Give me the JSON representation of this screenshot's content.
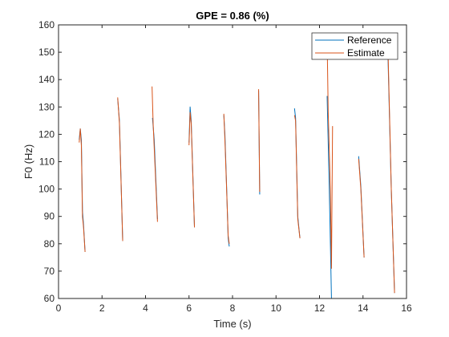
{
  "chart_data": {
    "type": "line",
    "title": "GPE = 0.86 (%)",
    "xlabel": "Time (s)",
    "ylabel": "F0 (Hz)",
    "xlim": [
      0,
      16
    ],
    "ylim": [
      60,
      160
    ],
    "xticks": [
      0,
      2,
      4,
      6,
      8,
      10,
      12,
      14,
      16
    ],
    "yticks": [
      60,
      70,
      80,
      90,
      100,
      110,
      120,
      130,
      140,
      150,
      160
    ],
    "grid": false,
    "legend_position": "top-right",
    "series": [
      {
        "name": "Reference",
        "color": "#0072BD",
        "segments": [
          [
            [
              0.95,
              118
            ],
            [
              1.0,
              122
            ],
            [
              1.05,
              118
            ],
            [
              1.1,
              92
            ],
            [
              1.15,
              87
            ],
            [
              1.22,
              77
            ]
          ],
          [
            [
              2.72,
              133
            ],
            [
              2.8,
              125
            ],
            [
              2.95,
              81
            ]
          ],
          [
            [
              4.32,
              126
            ],
            [
              4.4,
              118
            ],
            [
              4.55,
              89
            ]
          ],
          [
            [
              6.0,
              117
            ],
            [
              6.05,
              130
            ],
            [
              6.1,
              125
            ],
            [
              6.25,
              86
            ]
          ],
          [
            [
              7.6,
              127
            ],
            [
              7.65,
              120
            ],
            [
              7.72,
              103
            ],
            [
              7.8,
              82
            ],
            [
              7.85,
              79
            ]
          ],
          [
            [
              9.2,
              136
            ],
            [
              9.25,
              98
            ]
          ],
          [
            [
              10.85,
              129.5
            ],
            [
              10.9,
              126
            ],
            [
              11.0,
              90
            ],
            [
              11.1,
              82
            ]
          ],
          [
            [
              12.35,
              134
            ],
            [
              12.45,
              100
            ],
            [
              12.55,
              60
            ]
          ],
          [
            [
              13.8,
              112
            ],
            [
              13.9,
              101
            ],
            [
              14.05,
              75
            ]
          ],
          [
            [
              15.15,
              148
            ],
            [
              15.3,
              100
            ],
            [
              15.45,
              62
            ]
          ]
        ]
      },
      {
        "name": "Estimate",
        "color": "#D95319",
        "segments": [
          [
            [
              0.95,
              117
            ],
            [
              1.0,
              122
            ],
            [
              1.05,
              116
            ],
            [
              1.1,
              90
            ],
            [
              1.15,
              86
            ],
            [
              1.22,
              77
            ]
          ],
          [
            [
              2.72,
              133.5
            ],
            [
              2.8,
              124
            ],
            [
              2.95,
              81
            ]
          ],
          [
            [
              4.3,
              137.5
            ],
            [
              4.35,
              124
            ],
            [
              4.55,
              88
            ]
          ],
          [
            [
              6.0,
              116
            ],
            [
              6.05,
              128
            ],
            [
              6.1,
              124
            ],
            [
              6.25,
              86
            ]
          ],
          [
            [
              7.6,
              127.5
            ],
            [
              7.65,
              118
            ],
            [
              7.72,
              102
            ],
            [
              7.8,
              83
            ],
            [
              7.85,
              80
            ]
          ],
          [
            [
              9.2,
              136.5
            ],
            [
              9.25,
              99
            ]
          ],
          [
            [
              10.85,
              127
            ],
            [
              10.9,
              125
            ],
            [
              11.0,
              89
            ],
            [
              11.1,
              82
            ]
          ],
          [
            [
              12.35,
              155
            ],
            [
              12.4,
              128
            ],
            [
              12.5,
              100
            ],
            [
              12.55,
              71
            ],
            [
              12.6,
              123
            ]
          ],
          [
            [
              13.8,
              111
            ],
            [
              13.9,
              100
            ],
            [
              14.05,
              75
            ]
          ],
          [
            [
              15.15,
              151
            ],
            [
              15.3,
              100
            ],
            [
              15.45,
              62
            ]
          ]
        ]
      }
    ]
  }
}
